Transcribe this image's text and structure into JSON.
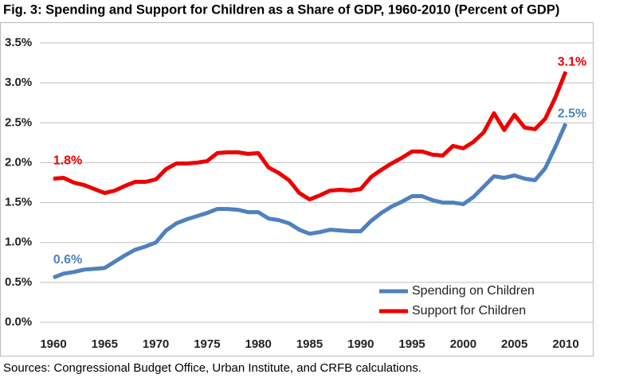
{
  "chart_data": {
    "type": "line",
    "title": "Fig. 3: Spending and Support for Children as a Share of GDP, 1960-2010 (Percent of GDP)",
    "source": "Sources: Congressional Budget Office, Urban Institute, and CRFB calculations.",
    "x": [
      1960,
      1961,
      1962,
      1963,
      1964,
      1965,
      1966,
      1967,
      1968,
      1969,
      1970,
      1971,
      1972,
      1973,
      1974,
      1975,
      1976,
      1977,
      1978,
      1979,
      1980,
      1981,
      1982,
      1983,
      1984,
      1985,
      1986,
      1987,
      1988,
      1989,
      1990,
      1991,
      1992,
      1993,
      1994,
      1995,
      1996,
      1997,
      1998,
      1999,
      2000,
      2001,
      2002,
      2003,
      2004,
      2005,
      2006,
      2007,
      2008,
      2009,
      2010
    ],
    "series": [
      {
        "name": "Spending on Children",
        "color": "#4f81bd",
        "values": [
          0.56,
          0.61,
          0.63,
          0.66,
          0.67,
          0.68,
          0.76,
          0.84,
          0.91,
          0.95,
          1.0,
          1.15,
          1.24,
          1.29,
          1.33,
          1.37,
          1.42,
          1.42,
          1.41,
          1.38,
          1.38,
          1.3,
          1.28,
          1.24,
          1.16,
          1.11,
          1.13,
          1.16,
          1.15,
          1.14,
          1.14,
          1.27,
          1.37,
          1.45,
          1.51,
          1.58,
          1.58,
          1.53,
          1.5,
          1.5,
          1.48,
          1.57,
          1.7,
          1.83,
          1.81,
          1.84,
          1.8,
          1.78,
          1.93,
          2.2,
          2.49
        ],
        "value_labels": [
          "0.6%",
          null,
          null,
          null,
          null,
          null,
          null,
          null,
          null,
          null,
          null,
          null,
          null,
          null,
          null,
          null,
          null,
          null,
          null,
          null,
          null,
          null,
          null,
          null,
          null,
          null,
          null,
          null,
          null,
          null,
          null,
          null,
          null,
          null,
          null,
          null,
          null,
          null,
          null,
          null,
          null,
          null,
          null,
          null,
          null,
          null,
          null,
          null,
          null,
          null,
          "2.5%"
        ]
      },
      {
        "name": "Support for Children",
        "color": "#ee0000",
        "values": [
          1.8,
          1.81,
          1.75,
          1.72,
          1.67,
          1.62,
          1.65,
          1.71,
          1.76,
          1.76,
          1.79,
          1.92,
          1.99,
          1.99,
          2.0,
          2.02,
          2.12,
          2.13,
          2.13,
          2.11,
          2.12,
          1.94,
          1.87,
          1.78,
          1.62,
          1.54,
          1.59,
          1.65,
          1.66,
          1.65,
          1.67,
          1.82,
          1.91,
          1.99,
          2.06,
          2.14,
          2.14,
          2.1,
          2.09,
          2.21,
          2.18,
          2.26,
          2.38,
          2.62,
          2.41,
          2.6,
          2.44,
          2.42,
          2.55,
          2.82,
          3.14
        ],
        "value_labels": [
          "1.8%",
          null,
          null,
          null,
          null,
          null,
          null,
          null,
          null,
          null,
          null,
          null,
          null,
          null,
          null,
          null,
          null,
          null,
          null,
          null,
          null,
          null,
          null,
          null,
          null,
          null,
          null,
          null,
          null,
          null,
          null,
          null,
          null,
          null,
          null,
          null,
          null,
          null,
          null,
          null,
          null,
          null,
          null,
          null,
          null,
          null,
          null,
          null,
          null,
          null,
          "3.1%"
        ]
      }
    ],
    "xlim": [
      1960,
      2010
    ],
    "xticks": [
      1960,
      1965,
      1970,
      1975,
      1980,
      1985,
      1990,
      1995,
      2000,
      2005,
      2010
    ],
    "ylim": [
      0,
      3.5
    ],
    "yticks": [
      {
        "value": 0,
        "label": "0.0%"
      },
      {
        "value": 0.5,
        "label": "0.5%"
      },
      {
        "value": 1,
        "label": "1.0%"
      },
      {
        "value": 1.5,
        "label": "1.5%"
      },
      {
        "value": 2,
        "label": "2.0%"
      },
      {
        "value": 2.5,
        "label": "2.5%"
      },
      {
        "value": 3,
        "label": "3.0%"
      },
      {
        "value": 3.5,
        "label": "3.5%"
      }
    ],
    "grid": true,
    "legend": "lower right"
  }
}
